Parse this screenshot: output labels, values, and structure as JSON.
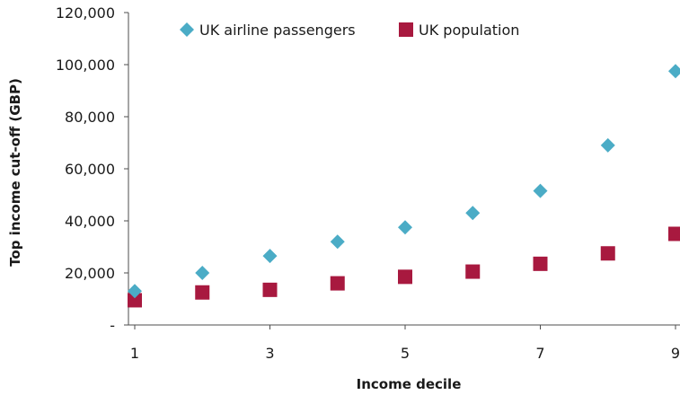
{
  "chart_data": {
    "type": "scatter",
    "title": "",
    "xlabel": "Income decile",
    "ylabel": "Top income cut-off (GBP)",
    "xlim": [
      1,
      9
    ],
    "ylim": [
      0,
      120000
    ],
    "x_ticks": [
      1,
      3,
      5,
      7,
      9
    ],
    "x_tick_labels": [
      "1",
      "3",
      "5",
      "7",
      "9"
    ],
    "y_ticks": [
      0,
      20000,
      40000,
      60000,
      80000,
      100000,
      120000
    ],
    "y_tick_labels": [
      "-",
      "20,000",
      "40,000",
      "60,000",
      "80,000",
      "100,000",
      "120,000"
    ],
    "grid": false,
    "legend_position": "top",
    "series": [
      {
        "name": "UK airline passengers",
        "marker": "diamond",
        "color": "#4bacc6",
        "points": [
          {
            "x": 1,
            "y": 13000
          },
          {
            "x": 2,
            "y": 20000
          },
          {
            "x": 3,
            "y": 26500
          },
          {
            "x": 4,
            "y": 32000
          },
          {
            "x": 5,
            "y": 37500
          },
          {
            "x": 6,
            "y": 43000
          },
          {
            "x": 7,
            "y": 51500
          },
          {
            "x": 8,
            "y": 69000
          },
          {
            "x": 9,
            "y": 97500
          }
        ]
      },
      {
        "name": "UK population",
        "marker": "square",
        "color": "#a8193f",
        "points": [
          {
            "x": 1,
            "y": 9500
          },
          {
            "x": 2,
            "y": 12500
          },
          {
            "x": 3,
            "y": 13500
          },
          {
            "x": 4,
            "y": 16000
          },
          {
            "x": 5,
            "y": 18500
          },
          {
            "x": 6,
            "y": 20500
          },
          {
            "x": 7,
            "y": 23500
          },
          {
            "x": 8,
            "y": 27500
          },
          {
            "x": 9,
            "y": 35000
          }
        ]
      }
    ]
  }
}
